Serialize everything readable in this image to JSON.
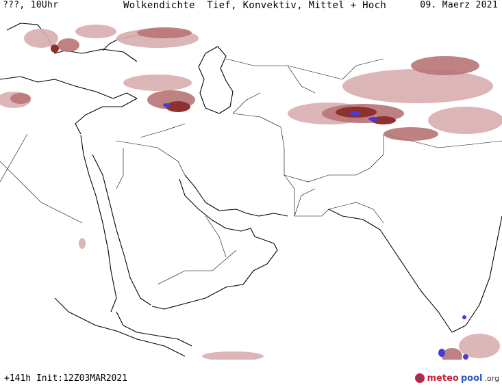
{
  "header": {
    "left": "???, 10Uhr",
    "title": "Wolkendichte  Tief, Konvektiv, Mittel + Hoch",
    "date": "09. Maerz 2021"
  },
  "footer": {
    "run_info": "+141h Init:12Z03MAR2021",
    "brand_part1": "meteo",
    "brand_part2": "pool",
    "brand_part3": ".org"
  },
  "map": {
    "colors": {
      "cloud_light": "#d9aeb0",
      "cloud_mid": "#b87475",
      "cloud_dark": "#8e3030",
      "convective": "#4a3ad8",
      "border": "#000000"
    }
  }
}
